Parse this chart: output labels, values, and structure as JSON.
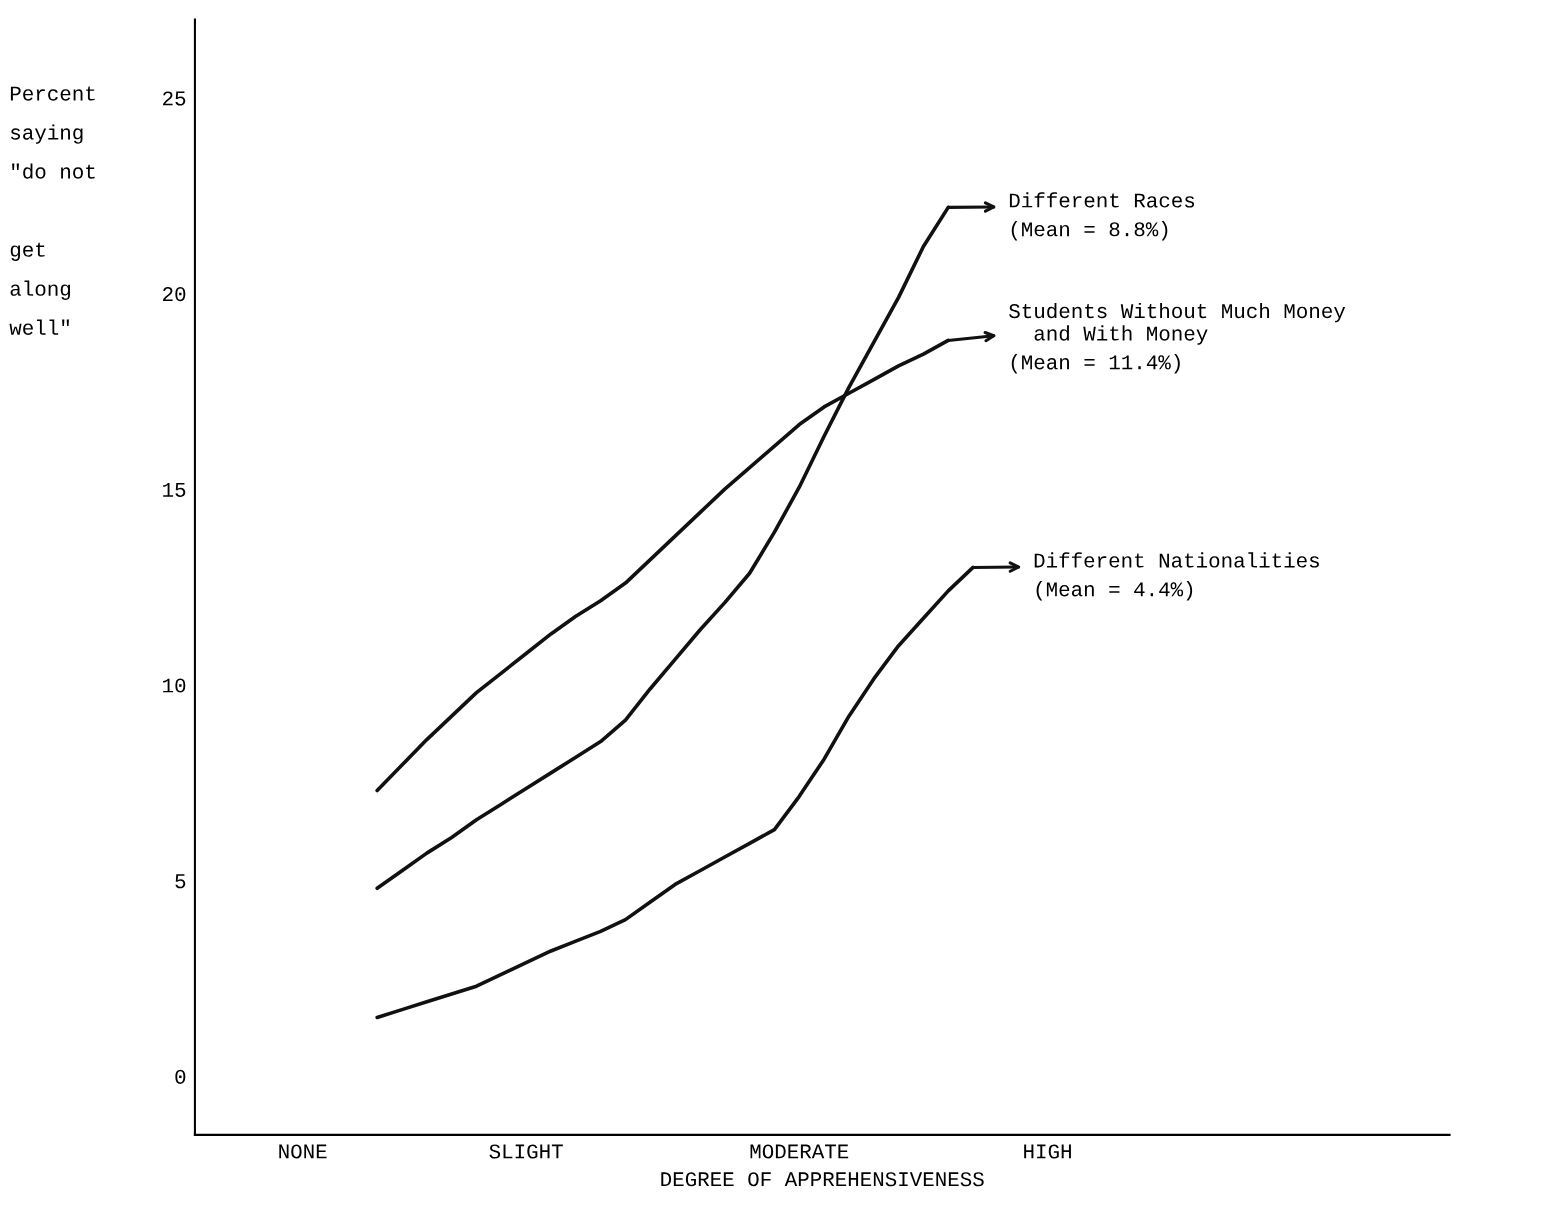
{
  "chart_data": {
    "type": "line",
    "xlabel": "DEGREE OF APPREHENSIVENESS",
    "ylabel": "Percent\nsaying\n\"do not\n\nget\nalong\nwell\"",
    "categories": [
      "NONE",
      null,
      null,
      null,
      null,
      null,
      null,
      null,
      null,
      "SLIGHT",
      null,
      null,
      null,
      null,
      null,
      null,
      null,
      null,
      null,
      null,
      "MODERATE",
      null,
      null,
      null,
      null,
      null,
      null,
      null,
      null,
      null,
      "HIGH"
    ],
    "ylim": [
      -1.5,
      27
    ],
    "yticks": [
      0,
      5,
      10,
      15,
      20,
      25
    ],
    "grid": false,
    "legend": "right",
    "marker": "none",
    "line_style": "solid",
    "series": [
      {
        "name": "Different Races",
        "color": "#111111",
        "values": [
          null,
          null,
          null,
          4.8,
          5.25,
          5.7,
          6.1,
          6.55,
          6.95,
          7.35,
          7.75,
          8.15,
          8.55,
          9.1,
          9.9,
          10.65,
          11.4,
          12.1,
          12.85,
          13.9,
          15.05,
          16.35,
          17.6,
          18.75,
          19.9,
          21.2,
          22.2,
          null,
          null,
          null,
          null
        ]
      },
      {
        "name": "Students Without Much Money\n  and With Money",
        "color": "#111111",
        "values": [
          null,
          null,
          null,
          7.3,
          7.95,
          8.6,
          9.2,
          9.8,
          10.3,
          10.8,
          11.3,
          11.75,
          12.15,
          12.6,
          13.2,
          13.8,
          14.4,
          15.0,
          15.55,
          16.1,
          16.65,
          17.1,
          17.45,
          17.8,
          18.15,
          18.45,
          18.8,
          null,
          null,
          null,
          null
        ]
      },
      {
        "name": "Different Nationalities",
        "color": "#111111",
        "values": [
          null,
          null,
          null,
          1.5,
          1.7,
          1.9,
          2.1,
          2.3,
          2.6,
          2.9,
          3.2,
          3.45,
          3.7,
          4.0,
          4.45,
          4.9,
          5.25,
          5.6,
          5.95,
          6.3,
          7.15,
          8.1,
          9.2,
          10.15,
          11.0,
          11.7,
          12.4,
          13.0,
          null,
          null,
          null
        ]
      }
    ],
    "annotations": [
      "(Mean = 8.8%)",
      "(Mean = 11.4%)",
      "(Mean = 4.4%)"
    ]
  }
}
